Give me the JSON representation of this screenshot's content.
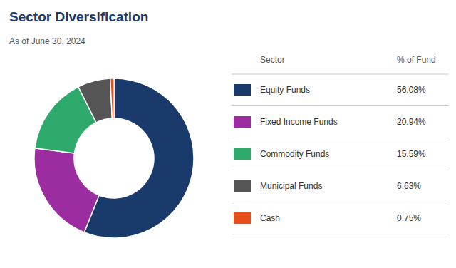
{
  "chart_data": {
    "type": "donut",
    "title": "Sector Diversification",
    "subtitle": "As of June 30, 2024",
    "categories": [
      "Equity Funds",
      "Fixed Income Funds",
      "Commodity Funds",
      "Municipal Funds",
      "Cash"
    ],
    "values": [
      56.08,
      20.94,
      15.59,
      6.63,
      0.75
    ],
    "value_labels": [
      "56.08%",
      "20.94%",
      "15.59%",
      "6.63%",
      "0.75%"
    ],
    "colors": [
      "#1a3a6b",
      "#9b2da0",
      "#2daa6b",
      "#555555",
      "#e84e1b"
    ],
    "legend": "right",
    "legend_headers": [
      "Sector",
      "% of Fund"
    ]
  }
}
